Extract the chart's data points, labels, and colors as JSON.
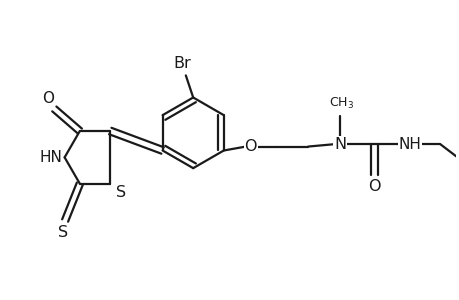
{
  "background_color": "#ffffff",
  "line_color": "#1a1a1a",
  "line_width": 1.6,
  "font_size": 10.5,
  "figsize": [
    4.6,
    3.0
  ],
  "dpi": 100,
  "xlim": [
    0,
    9.2
  ],
  "ylim": [
    0,
    6.0
  ]
}
